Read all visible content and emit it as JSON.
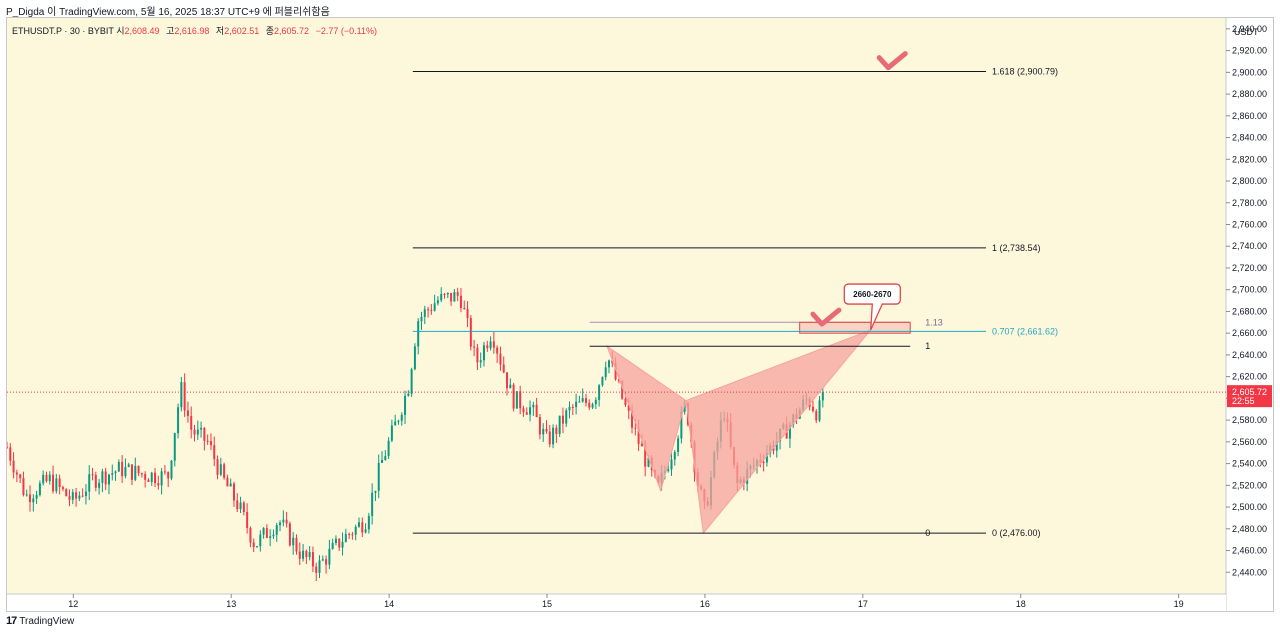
{
  "caption": "P_Digda 이 TradingView.com, 5월 16, 2025 18:37 UTC+9 에 퍼블리쉬함음",
  "symbol": {
    "name": "ETHUSDT.P · 30 · BYBIT",
    "open_label": "시",
    "open": "2,608.49",
    "high_label": "고",
    "high": "2,616.98",
    "low_label": "저",
    "low": "2,602.51",
    "close_label": "종",
    "close": "2,605.72",
    "change": "−2.77 (−0.11%)"
  },
  "brand": "TradingView",
  "brand_logo": "17",
  "colors": {
    "background": "#fdf8dc",
    "up": "#089981",
    "down": "#f23645",
    "fib_line": "#131722",
    "fib_cyan": "#22a7c2",
    "pattern_fill": "#f7a39d",
    "zone": "#f4a6a6",
    "label_border": "#e04646",
    "check": "#e86a78"
  },
  "chart_data": {
    "type": "candlestick",
    "currency": "USDT",
    "ylim": [
      2420,
      2950
    ],
    "y_ticks": [
      2440,
      2460,
      2480,
      2500,
      2520,
      2540,
      2560,
      2580,
      2600,
      2620,
      2640,
      2660,
      2680,
      2700,
      2720,
      2740,
      2760,
      2780,
      2800,
      2820,
      2840,
      2860,
      2880,
      2900,
      2920,
      2940
    ],
    "y_tick_labels": [
      "2,440.00",
      "2,460.00",
      "2,480.00",
      "2,500.00",
      "2,520.00",
      "2,540.00",
      "2,560.00",
      "2,580.00",
      "2,600.00",
      "2,620.00",
      "2,640.00",
      "2,660.00",
      "2,680.00",
      "2,700.00",
      "2,720.00",
      "2,740.00",
      "2,760.00",
      "2,780.00",
      "2,800.00",
      "2,820.00",
      "2,840.00",
      "2,860.00",
      "2,880.00",
      "2,900.00",
      "2,920.00",
      "2,940.00"
    ],
    "x_ticks": [
      "12",
      "13",
      "14",
      "15",
      "16",
      "17",
      "18",
      "19"
    ],
    "x_tick_days": [
      12,
      13,
      14,
      15,
      16,
      17,
      18,
      19
    ],
    "day_range": [
      11.58,
      19.3
    ],
    "last_price": 2605.72,
    "last_price_label": "2,605.72",
    "countdown_label": "22:55",
    "path": [
      [
        11.58,
        2555
      ],
      [
        11.7,
        2510
      ],
      [
        11.85,
        2525
      ],
      [
        12.0,
        2505
      ],
      [
        12.12,
        2525
      ],
      [
        12.3,
        2535
      ],
      [
        12.45,
        2530
      ],
      [
        12.6,
        2528
      ],
      [
        12.68,
        2610
      ],
      [
        12.75,
        2570
      ],
      [
        12.85,
        2560
      ],
      [
        12.95,
        2525
      ],
      [
        13.05,
        2500
      ],
      [
        13.15,
        2465
      ],
      [
        13.3,
        2488
      ],
      [
        13.45,
        2455
      ],
      [
        13.55,
        2445
      ],
      [
        13.7,
        2470
      ],
      [
        13.85,
        2488
      ],
      [
        13.95,
        2540
      ],
      [
        14.05,
        2580
      ],
      [
        14.12,
        2610
      ],
      [
        14.18,
        2672
      ],
      [
        14.3,
        2690
      ],
      [
        14.45,
        2695
      ],
      [
        14.55,
        2632
      ],
      [
        14.65,
        2662
      ],
      [
        14.78,
        2600
      ],
      [
        14.9,
        2590
      ],
      [
        15.0,
        2560
      ],
      [
        15.15,
        2590
      ],
      [
        15.3,
        2600
      ],
      [
        15.38,
        2640
      ],
      [
        15.5,
        2590
      ],
      [
        15.7,
        2515
      ],
      [
        15.8,
        2555
      ],
      [
        15.88,
        2595
      ],
      [
        15.95,
        2525
      ],
      [
        16.0,
        2495
      ],
      [
        16.08,
        2560
      ],
      [
        16.12,
        2590
      ],
      [
        16.2,
        2520
      ],
      [
        16.35,
        2545
      ],
      [
        16.5,
        2568
      ],
      [
        16.65,
        2600
      ],
      [
        16.72,
        2585
      ],
      [
        16.75,
        2610
      ]
    ],
    "fib_levels": [
      {
        "label": "1.618 (2,900.79)",
        "price": 2900.79,
        "color": "#131722"
      },
      {
        "label": "1 (2,738.54)",
        "price": 2738.54,
        "color": "#131722"
      },
      {
        "label": "0.707 (2,661.62)",
        "price": 2661.62,
        "color": "#22a7c2"
      },
      {
        "label": "0 (2,476.00)",
        "price": 2476.0,
        "color": "#131722"
      }
    ],
    "fib_day_range": [
      14.15,
      17.78
    ],
    "harmonic_pattern": {
      "points": [
        [
          15.38,
          2648
        ],
        [
          15.72,
          2515
        ],
        [
          15.88,
          2598
        ],
        [
          15.99,
          2476
        ],
        [
          17.05,
          2663
        ]
      ],
      "level_labels": [
        {
          "label": "1.13",
          "price": 2670
        },
        {
          "label": "1",
          "price": 2648
        },
        {
          "label": "0",
          "price": 2476
        }
      ],
      "line_113_range": [
        15.27,
        17.3
      ],
      "line_1_range": [
        15.27,
        17.3
      ],
      "line_0_range": [
        15.99,
        17.3
      ]
    },
    "target_zone": {
      "from": 2660,
      "to": 2670,
      "day_range": [
        16.6,
        17.3
      ]
    },
    "callout": {
      "text": "2660-2670",
      "price": 2696,
      "day": 17.06
    },
    "check_marks": [
      {
        "day": 17.18,
        "price": 2908
      },
      {
        "day": 16.76,
        "price": 2672
      }
    ]
  }
}
